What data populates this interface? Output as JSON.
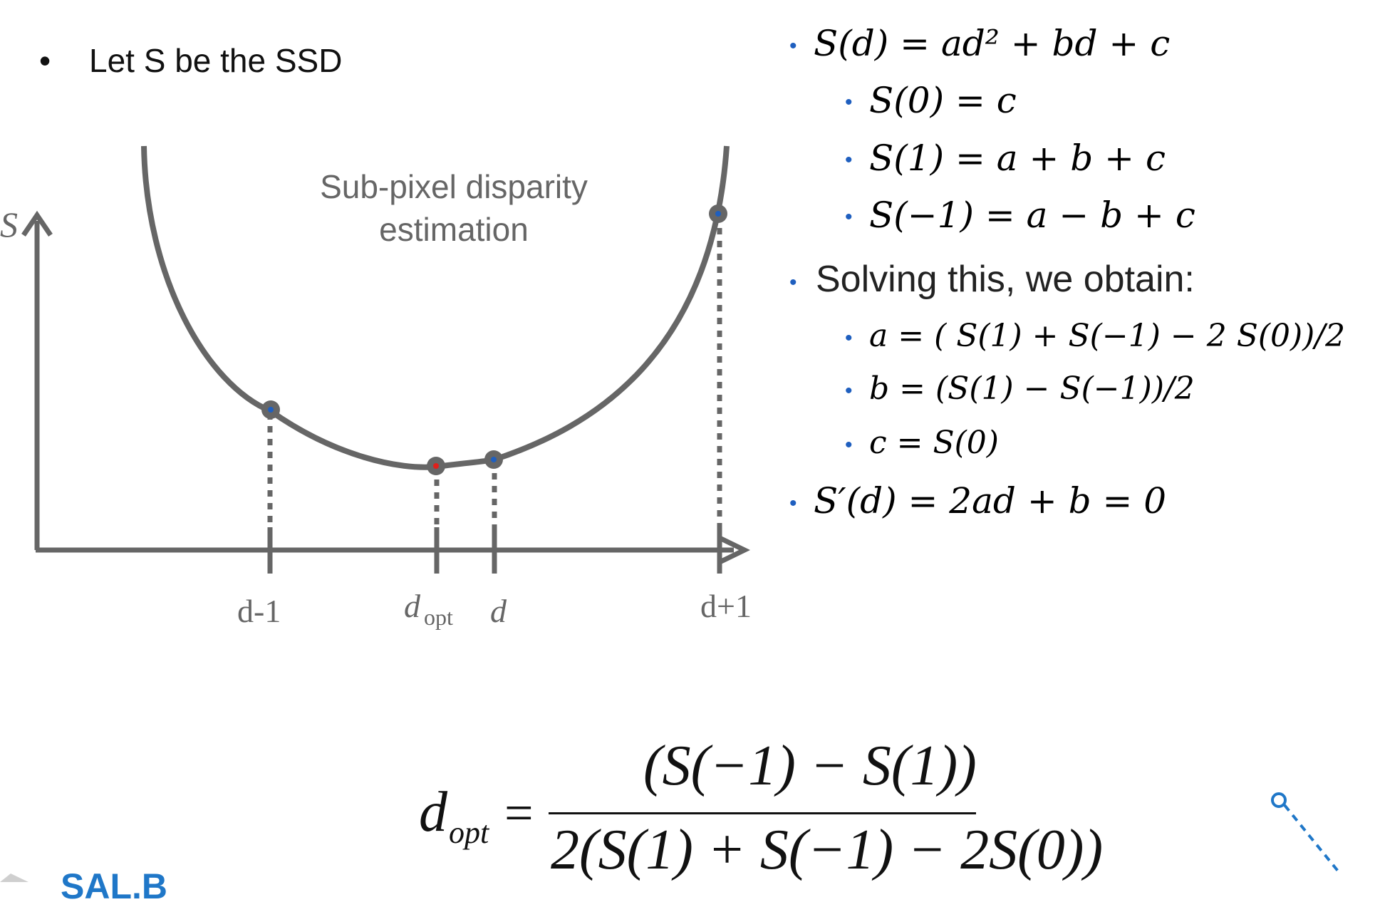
{
  "left_bullet": "Let S be the SSD",
  "chart": {
    "title_line1": "Sub-pixel disparity",
    "title_line2": "estimation",
    "y_label": "S",
    "x_labels": {
      "dm1": "d-1",
      "dopt_main": "d",
      "dopt_sub": "opt",
      "d": "d",
      "dp1": "d+1"
    }
  },
  "equations": {
    "e1": "S(d) = ad² + bd + c",
    "e2": "S(0) =  c",
    "e3": "S(1) = a + b + c",
    "e4": "S(−1) = a − b + c",
    "solving": "Solving this, we obtain:",
    "s1": "a = ( S(1) + S(−1) − 2 S(0))/2",
    "s2": "b = (S(1) − S(−1))/2",
    "s3": "c = S(0)",
    "deriv": "S′(d) = 2ad + b = 0"
  },
  "formula": {
    "lhs": "d",
    "lhs_sub": "opt",
    "numerator": "(S(−1) − S(1))",
    "denominator": "2(S(1) + S(−1) − 2S(0))"
  },
  "colors": {
    "curve": "#666666",
    "bullet": "#1f5fbf",
    "point_blue": "#1f5fbf",
    "point_red": "#e0201b"
  },
  "footer_brand": "SAL.B"
}
